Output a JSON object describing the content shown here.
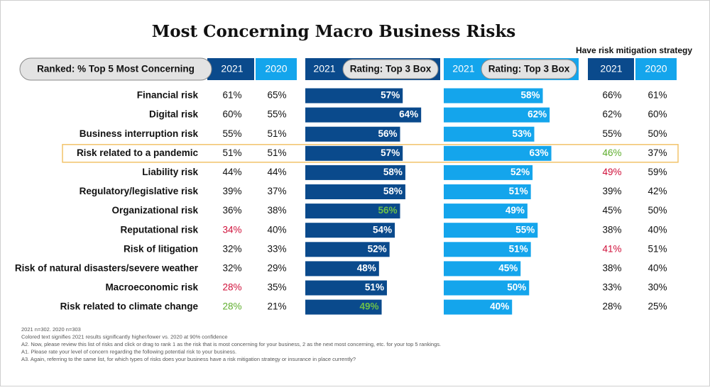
{
  "title": "Most Concerning Macro Business Risks",
  "headers": {
    "ranked": "Ranked: % Top 5 Most Concerning",
    "rating": "Rating: Top 3 Box",
    "mitigation": "Have risk mitigation strategy",
    "year_2021": "2021",
    "year_2020": "2020"
  },
  "risks": [
    "Financial risk",
    "Digital risk",
    "Business interruption risk",
    "Risk related to a pandemic",
    "Liability risk",
    "Regulatory/legislative risk",
    "Organizational risk",
    "Reputational risk",
    "Risk of litigation",
    "Risk of natural disasters/severe weather",
    "Macroeconomic risk",
    "Risk related to climate change"
  ],
  "highlighted_row": 3,
  "highlight_color": "#f2c46a",
  "ranked_2021": {
    "values": [
      "61%",
      "60%",
      "55%",
      "51%",
      "44%",
      "39%",
      "36%",
      "34%",
      "32%",
      "32%",
      "28%",
      "28%"
    ],
    "colors": [
      "#111111",
      "#111111",
      "#111111",
      "#111111",
      "#111111",
      "#111111",
      "#111111",
      "#d0103a",
      "#111111",
      "#111111",
      "#d0103a",
      "#5fae2e"
    ]
  },
  "ranked_2020": {
    "values": [
      "65%",
      "55%",
      "51%",
      "51%",
      "44%",
      "37%",
      "38%",
      "40%",
      "33%",
      "29%",
      "35%",
      "21%"
    ],
    "colors": [
      "#111111",
      "#111111",
      "#111111",
      "#111111",
      "#111111",
      "#111111",
      "#111111",
      "#111111",
      "#111111",
      "#111111",
      "#111111",
      "#111111"
    ]
  },
  "rating_2021": {
    "values": [
      57,
      64,
      56,
      57,
      58,
      58,
      56,
      54,
      52,
      48,
      51,
      49
    ],
    "value_labels": [
      "57%",
      "64%",
      "56%",
      "57%",
      "58%",
      "58%",
      "56%",
      "54%",
      "52%",
      "48%",
      "51%",
      "49%"
    ],
    "label_colors": [
      "#ffffff",
      "#ffffff",
      "#ffffff",
      "#ffffff",
      "#ffffff",
      "#ffffff",
      "#6cc04a",
      "#ffffff",
      "#ffffff",
      "#ffffff",
      "#ffffff",
      "#6cc04a"
    ],
    "color": "#0a4a8c",
    "xlim": [
      20,
      68
    ]
  },
  "rating_2020": {
    "values": [
      58,
      62,
      53,
      63,
      52,
      51,
      49,
      55,
      51,
      45,
      50,
      40
    ],
    "value_labels": [
      "58%",
      "62%",
      "53%",
      "63%",
      "52%",
      "51%",
      "49%",
      "55%",
      "51%",
      "45%",
      "50%",
      "40%"
    ],
    "label_colors": [
      "#ffffff",
      "#ffffff",
      "#ffffff",
      "#ffffff",
      "#ffffff",
      "#ffffff",
      "#ffffff",
      "#ffffff",
      "#ffffff",
      "#ffffff",
      "#ffffff",
      "#ffffff"
    ],
    "color": "#14a5ec",
    "xlim": [
      0,
      74
    ]
  },
  "mitigation_2021": {
    "values": [
      "66%",
      "62%",
      "55%",
      "46%",
      "49%",
      "39%",
      "45%",
      "38%",
      "41%",
      "38%",
      "33%",
      "28%"
    ],
    "colors": [
      "#111111",
      "#111111",
      "#111111",
      "#5fae2e",
      "#d0103a",
      "#111111",
      "#111111",
      "#111111",
      "#d0103a",
      "#111111",
      "#111111",
      "#111111"
    ]
  },
  "mitigation_2020": {
    "values": [
      "61%",
      "60%",
      "50%",
      "37%",
      "59%",
      "42%",
      "50%",
      "40%",
      "51%",
      "40%",
      "30%",
      "25%"
    ],
    "colors": [
      "#111111",
      "#111111",
      "#111111",
      "#111111",
      "#111111",
      "#111111",
      "#111111",
      "#111111",
      "#111111",
      "#111111",
      "#111111",
      "#111111"
    ]
  },
  "notes": [
    "2021 n=302. 2020 n=303",
    "Colored text signifies 2021 results significantly higher/lower vs. 2020 at 90% confidence",
    "A2. Now, please review this list of risks and click or drag to rank 1 as the risk that is most concerning for your business, 2 as the next most concerning, etc. for your top 5 rankings.",
    "A1. Please rate your level of concern regarding the following potential risk to your business.",
    "A3. Again, referring to the same list, for which types of risks does your business have a risk mitigation strategy or insurance in place currently?"
  ]
}
